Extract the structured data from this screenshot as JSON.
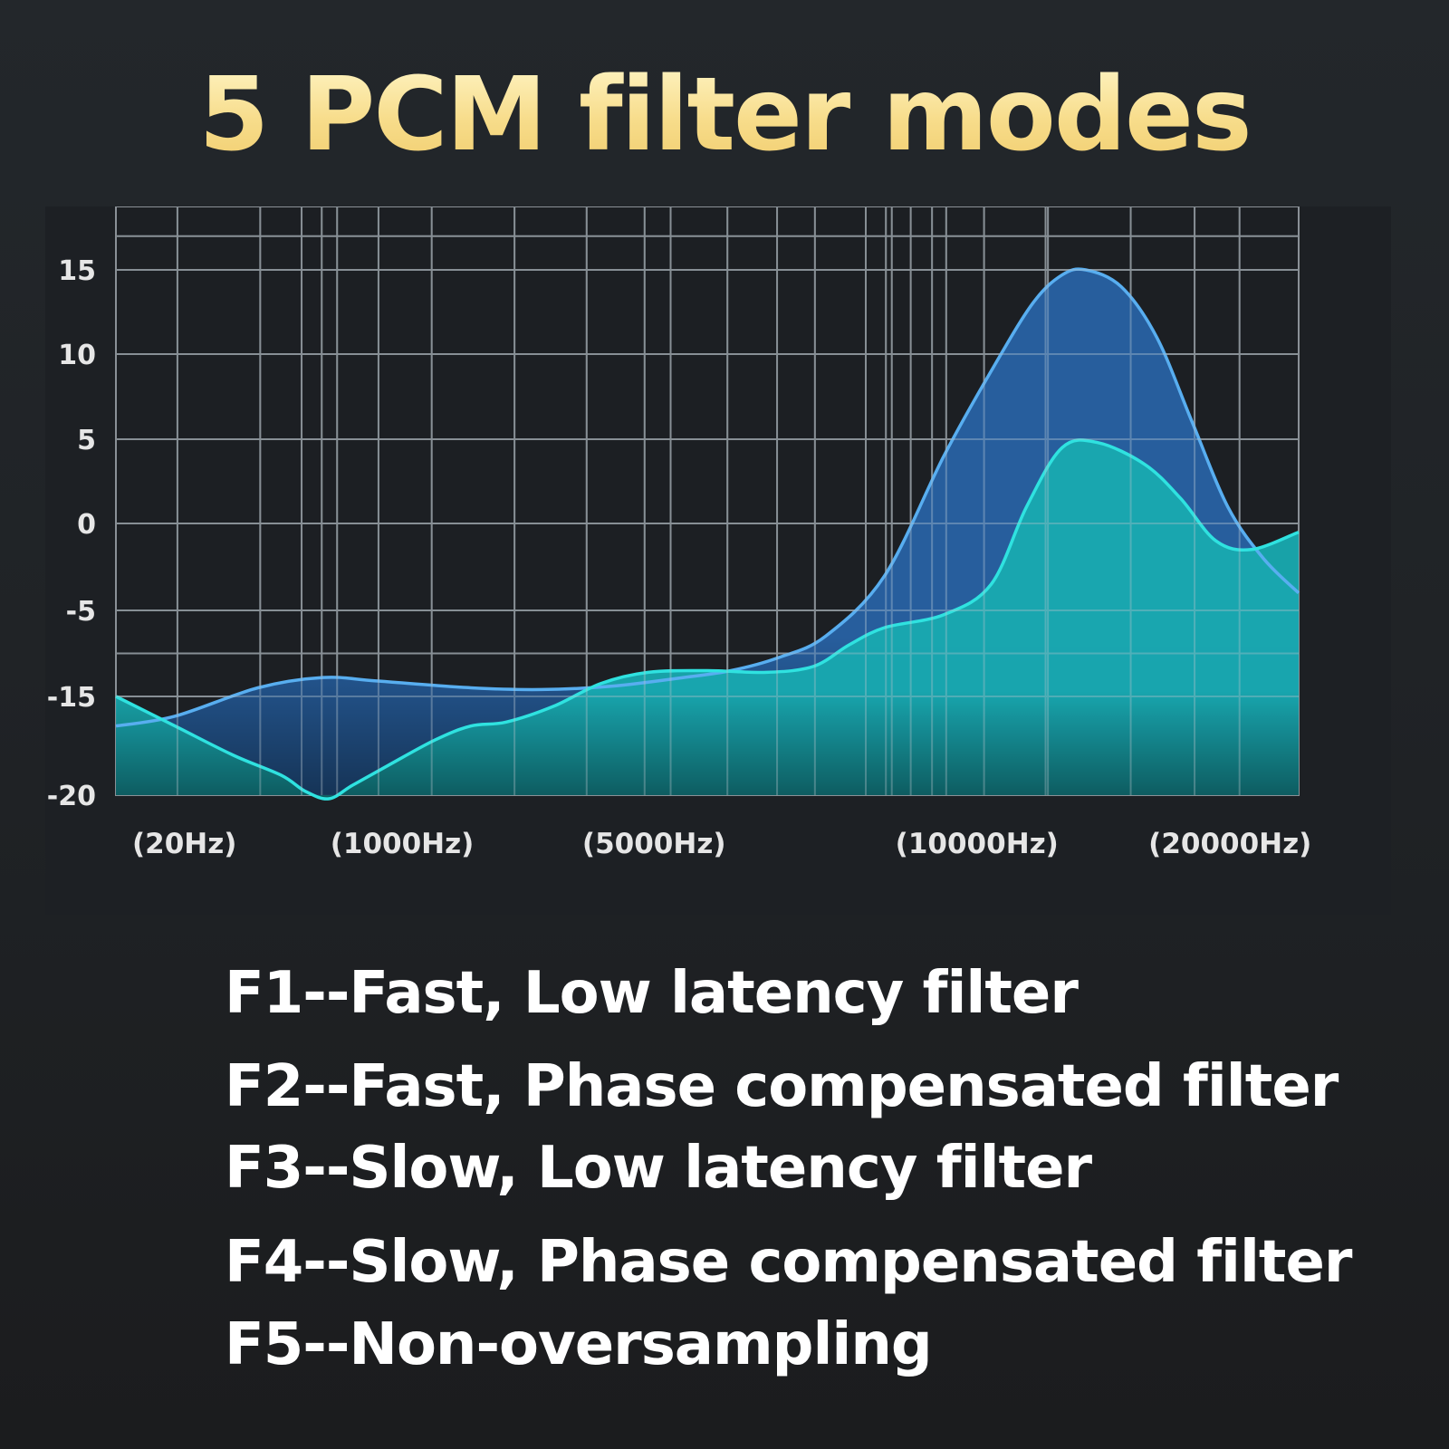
{
  "title": "5 PCM filter modes",
  "chart_data": {
    "type": "area",
    "yticks": [
      15,
      10,
      5,
      0,
      -5,
      -15,
      -20
    ],
    "xtick_labels": [
      "(20Hz)",
      "(1000Hz)",
      "(5000Hz)",
      "(10000Hz)",
      "(20000Hz)"
    ],
    "grid": true,
    "series": [
      {
        "color": "#58aef0",
        "fill": "#2864a8",
        "x": [
          0,
          0.05,
          0.12,
          0.175,
          0.22,
          0.3,
          0.36,
          0.42,
          0.48,
          0.52,
          0.56,
          0.6,
          0.65,
          0.7,
          0.74,
          0.775,
          0.8,
          0.82,
          0.85,
          0.88,
          0.91,
          0.94,
          0.97,
          1.0
        ],
        "y": [
          -16.5,
          -16,
          -14,
          -12.8,
          -13.2,
          -14,
          -14.2,
          -13.8,
          -12.8,
          -12,
          -10.5,
          -8,
          -3,
          4,
          9,
          13,
          14.7,
          15,
          14,
          11,
          6,
          1,
          -2,
          -4
        ]
      },
      {
        "color": "#2fe2e0",
        "fill": "#18aab0",
        "x": [
          0,
          0.05,
          0.1,
          0.14,
          0.16,
          0.18,
          0.2,
          0.23,
          0.27,
          0.3,
          0.33,
          0.37,
          0.41,
          0.45,
          0.5,
          0.55,
          0.59,
          0.62,
          0.65,
          0.7,
          0.74,
          0.77,
          0.8,
          0.83,
          0.87,
          0.9,
          0.93,
          0.96,
          1.0
        ],
        "y": [
          -15,
          -16.5,
          -18,
          -19,
          -19.8,
          -20.2,
          -19.5,
          -18.5,
          -17.2,
          -16.5,
          -16.3,
          -15.5,
          -13.5,
          -12.2,
          -12,
          -12.2,
          -11.5,
          -9,
          -7,
          -5.5,
          -3.5,
          1,
          4.5,
          4.8,
          3.5,
          1.5,
          -1,
          -1.5,
          -0.5
        ]
      }
    ]
  },
  "modes": [
    "F1--Fast, Low latency filter",
    "F2--Fast, Phase compensated filter",
    "F3--Slow, Low latency filter",
    "F4--Slow, Phase compensated filter",
    "F5--Non-oversampling"
  ]
}
